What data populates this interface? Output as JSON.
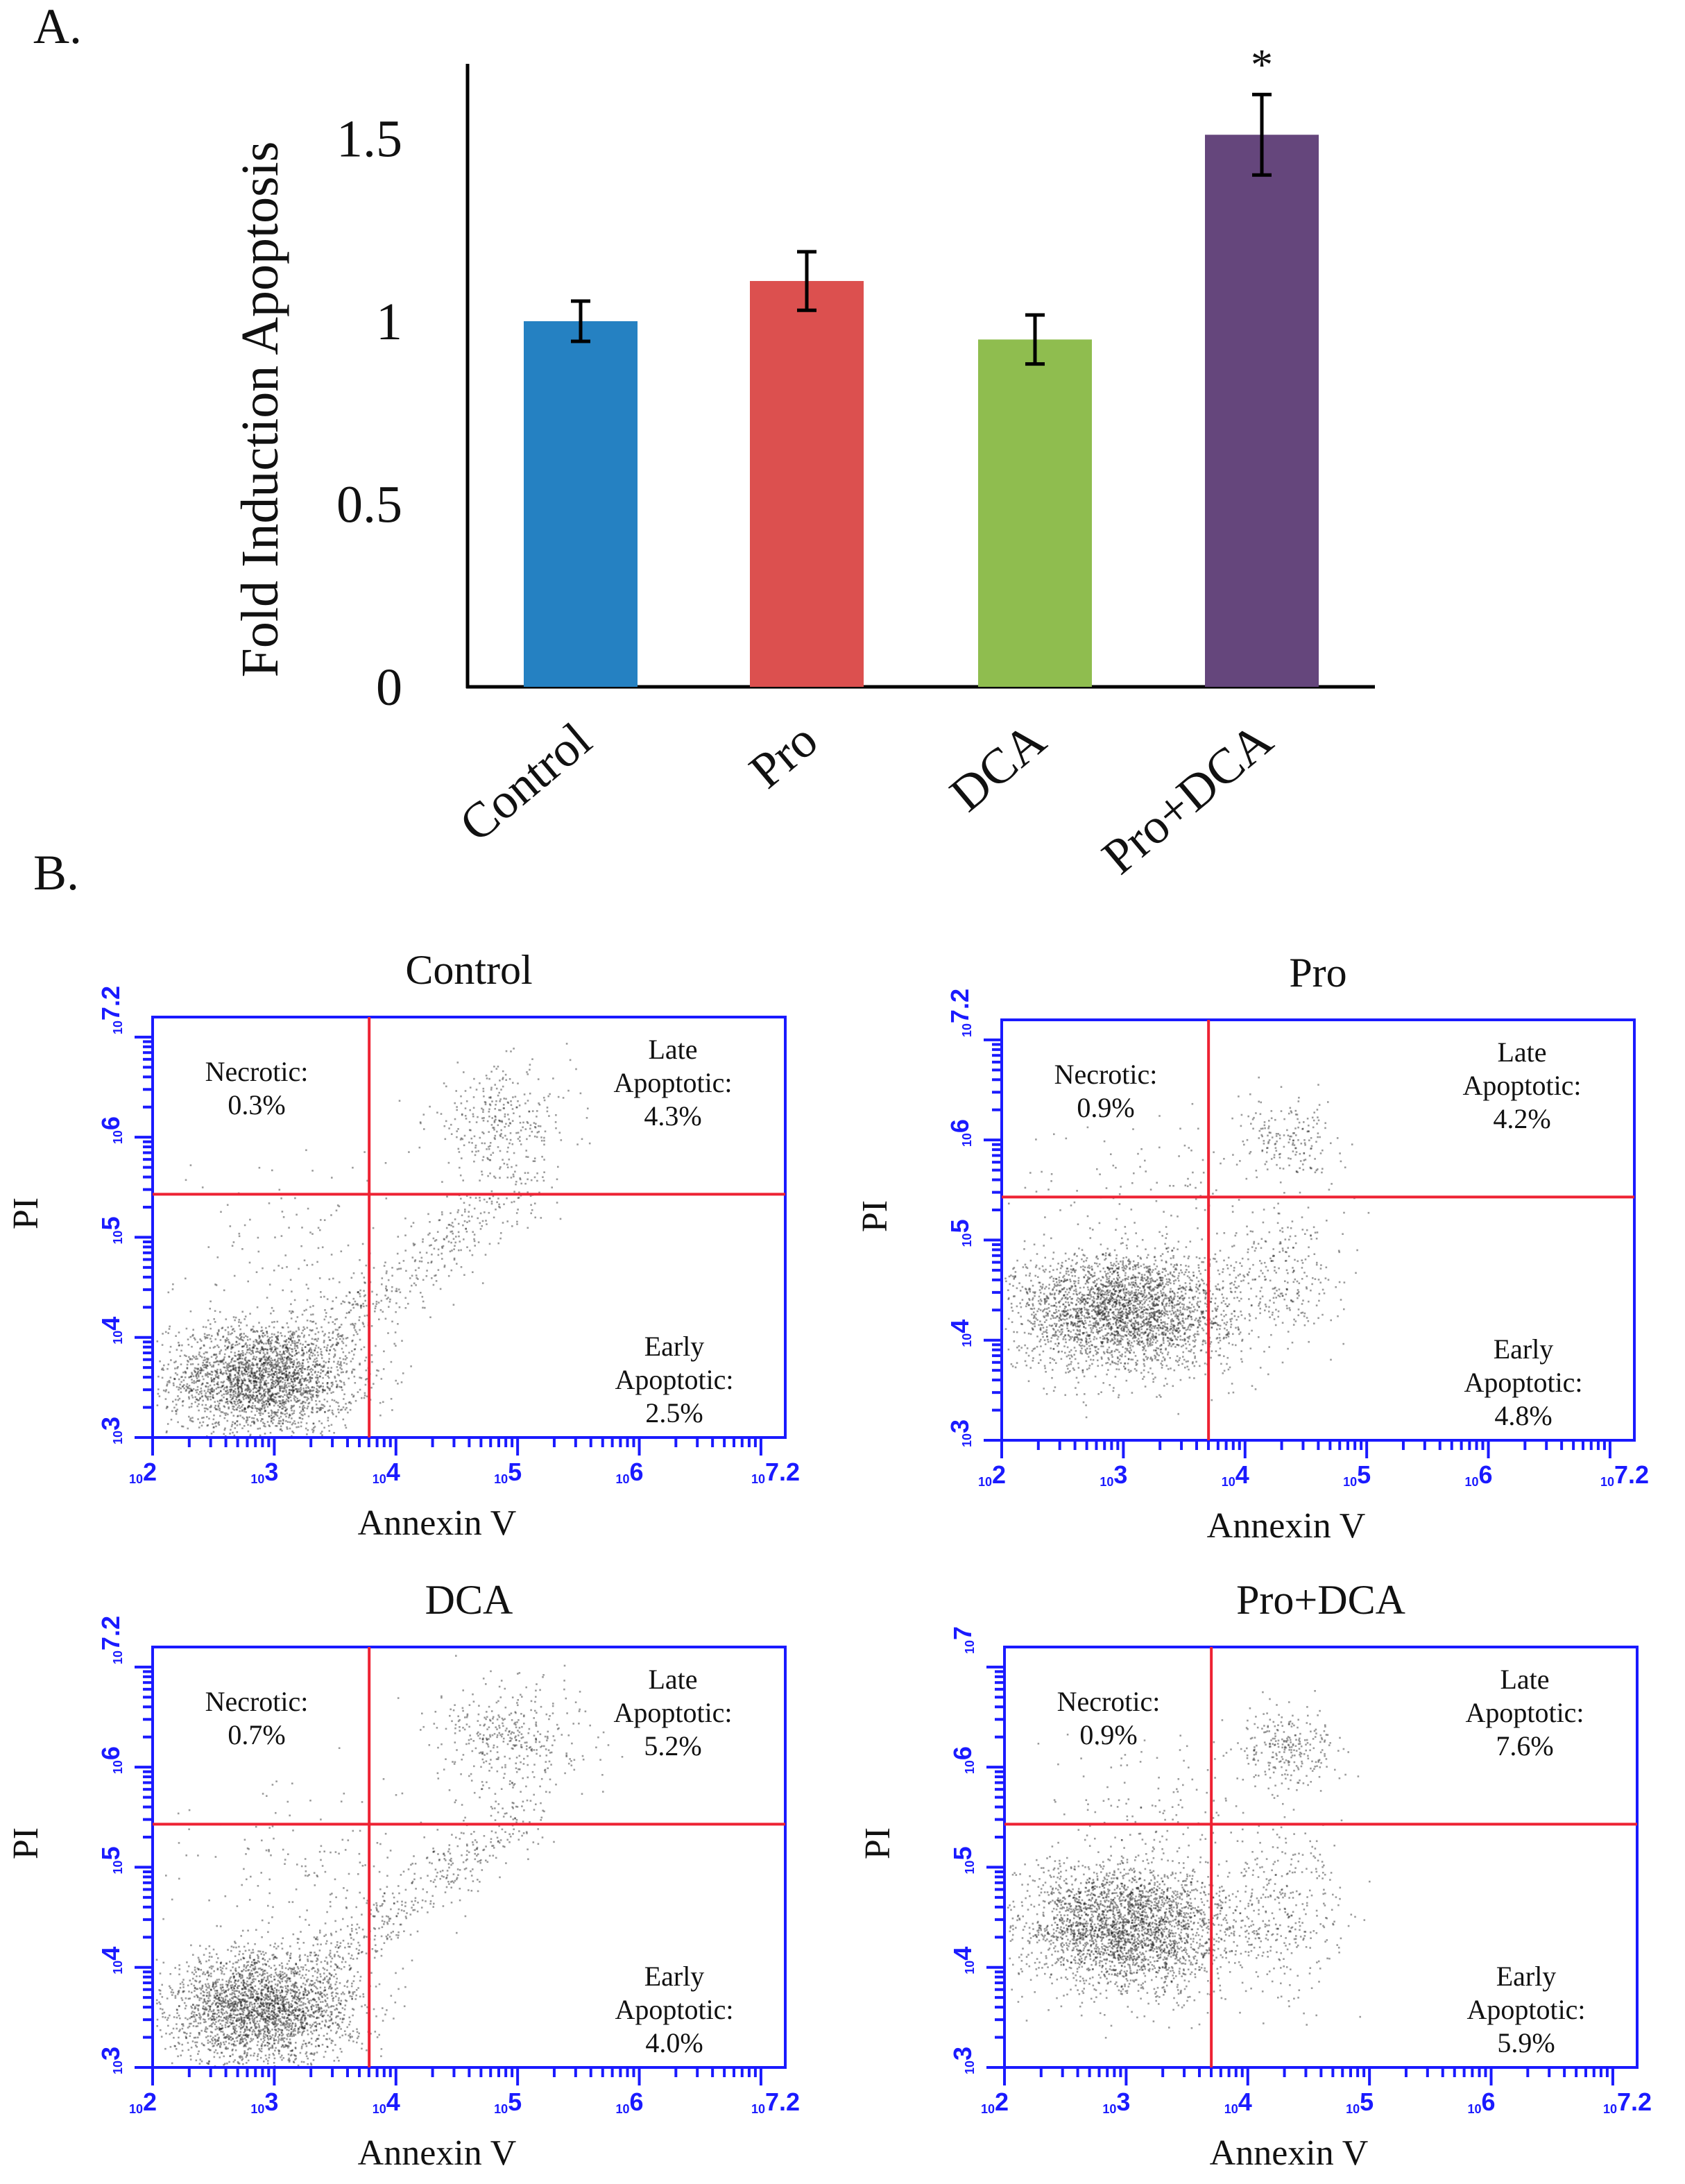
{
  "chart_data": [
    {
      "type": "bar",
      "panel_label": "A.",
      "title": "",
      "xlabel": "",
      "ylabel": "Fold Induction Apoptosis",
      "ylim": [
        0,
        1.7
      ],
      "yticks": [
        "0",
        "0.5",
        "1",
        "1.5"
      ],
      "ytick_values": [
        0,
        0.5,
        1,
        1.5
      ],
      "grid": false,
      "categories": [
        "Control",
        "Pro",
        "DCA",
        "Pro+DCA"
      ],
      "values": [
        1.0,
        1.11,
        0.95,
        1.51
      ],
      "errors": [
        0.055,
        0.08,
        0.067,
        0.11
      ],
      "colors": [
        "#2581c2",
        "#dc504f",
        "#8fbd4f",
        "#65467c"
      ],
      "annotations": [
        "",
        "",
        "",
        "*"
      ]
    },
    {
      "type": "scatter",
      "panel_label": "B.",
      "xlabel": "Annexin V",
      "ylabel": "PI",
      "x_scale": "log10",
      "y_scale": "log10",
      "xlim_log10": [
        2,
        7.2
      ],
      "ylim_log10": [
        3,
        7.2
      ],
      "xtick_exponents": [
        "2",
        "3",
        "4",
        "5",
        "6",
        "7.2"
      ],
      "gate_color": "#ee2233",
      "axis_color": "#1a1aff",
      "panels": [
        {
          "title": "Control",
          "ytick_exponents": [
            "3",
            "4",
            "5",
            "6",
            "7.2"
          ],
          "gate_x_log10": 3.78,
          "gate_y_log10": 5.43,
          "necrotic": {
            "label": "Necrotic:",
            "value": "0.3%"
          },
          "late": {
            "label1": "Late",
            "label2": "Apoptotic:",
            "value": "4.3%"
          },
          "early": {
            "label1": "Early",
            "label2": "Apoptotic:",
            "value": "2.5%"
          }
        },
        {
          "title": "Pro",
          "ytick_exponents": [
            "3",
            "4",
            "5",
            "6",
            "7.2"
          ],
          "gate_x_log10": 3.7,
          "gate_y_log10": 5.43,
          "necrotic": {
            "label": "Necrotic:",
            "value": "0.9%"
          },
          "late": {
            "label1": "Late",
            "label2": "Apoptotic:",
            "value": "4.2%"
          },
          "early": {
            "label1": "Early",
            "label2": "Apoptotic:",
            "value": "4.8%"
          }
        },
        {
          "title": "DCA",
          "ytick_exponents": [
            "3",
            "4",
            "5",
            "6",
            "7.2"
          ],
          "gate_x_log10": 3.78,
          "gate_y_log10": 5.43,
          "necrotic": {
            "label": "Necrotic:",
            "value": "0.7%"
          },
          "late": {
            "label1": "Late",
            "label2": "Apoptotic:",
            "value": "5.2%"
          },
          "early": {
            "label1": "Early",
            "label2": "Apoptotic:",
            "value": "4.0%"
          }
        },
        {
          "title": "Pro+DCA",
          "ytick_exponents": [
            "3",
            "4",
            "5",
            "6",
            "7"
          ],
          "gate_x_log10": 3.7,
          "gate_y_log10": 5.43,
          "necrotic": {
            "label": "Necrotic:",
            "value": "0.9%"
          },
          "late": {
            "label1": "Late",
            "label2": "Apoptotic:",
            "value": "7.6%"
          },
          "early": {
            "label1": "Early",
            "label2": "Apoptotic:",
            "value": "5.9%"
          }
        }
      ]
    }
  ]
}
